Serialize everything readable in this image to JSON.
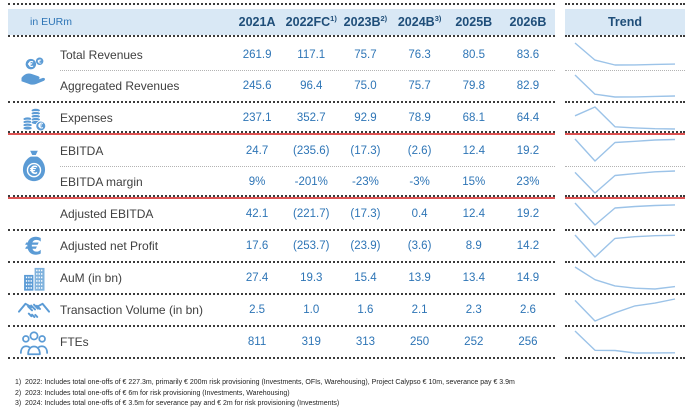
{
  "header": {
    "unit_label": "in EURm",
    "trend_label": "Trend"
  },
  "colors": {
    "header_bg": "#d9e8f5",
    "header_text": "#1f4e79",
    "value_text": "#2e75b6",
    "label_text": "#404040",
    "icon_blue": "#5b9bd5",
    "sparkline": "#9cc3e8",
    "divider_red": "#dd5353"
  },
  "chart_data": {
    "type": "table",
    "title": "Financial plan overview with trend sparklines",
    "unit": "in EURm",
    "columns": [
      "2021A",
      "2022FC",
      "2023B",
      "2024B",
      "2025B",
      "2026B"
    ],
    "column_footnote_refs": [
      "",
      "1)",
      "2)",
      "3)",
      "",
      ""
    ],
    "trend_type": "line",
    "rows": [
      {
        "label": "Total Revenues",
        "icon": "hand-coins-icon",
        "icon_span": 2,
        "sep": "light",
        "display": [
          "261.9",
          "117.1",
          "75.7",
          "76.3",
          "80.5",
          "83.6"
        ],
        "values": [
          261.9,
          117.1,
          75.7,
          76.3,
          80.5,
          83.6
        ]
      },
      {
        "label": "Aggregated Revenues",
        "sep": "dark",
        "display": [
          "245.6",
          "96.4",
          "75.0",
          "75.7",
          "79.8",
          "82.9"
        ],
        "values": [
          245.6,
          96.4,
          75.0,
          75.7,
          79.8,
          82.9
        ]
      },
      {
        "label": "Expenses",
        "icon": "coin-stacks-icon",
        "icon_span": 1,
        "sep": "red",
        "display": [
          "237.1",
          "352.7",
          "92.9",
          "78.9",
          "68.1",
          "64.4"
        ],
        "values": [
          237.1,
          352.7,
          92.9,
          78.9,
          68.1,
          64.4
        ]
      },
      {
        "label": "EBITDA",
        "icon": "money-bag-icon",
        "icon_span": 2,
        "sep": "light",
        "display": [
          "24.7",
          "(235.6)",
          "(17.3)",
          "(2.6)",
          "12.4",
          "19.2"
        ],
        "values": [
          24.7,
          -235.6,
          -17.3,
          -2.6,
          12.4,
          19.2
        ]
      },
      {
        "label": "EBITDA margin",
        "sep": "red",
        "display": [
          "9%",
          "-201%",
          "-23%",
          "-3%",
          "15%",
          "23%"
        ],
        "values": [
          9,
          -201,
          -23,
          -3,
          15,
          23
        ]
      },
      {
        "label": "Adjusted EBITDA",
        "sep": "dark",
        "display": [
          "42.1",
          "(221.7)",
          "(17.3)",
          "0.4",
          "12.4",
          "19.2"
        ],
        "values": [
          42.1,
          -221.7,
          -17.3,
          0.4,
          12.4,
          19.2
        ]
      },
      {
        "label": "Adjusted net Profit",
        "icon": "euro-icon",
        "icon_span": 1,
        "sep": "dark",
        "display": [
          "17.6",
          "(253.7)",
          "(23.9)",
          "(3.6)",
          "8.9",
          "14.2"
        ],
        "values": [
          17.6,
          -253.7,
          -23.9,
          -3.6,
          8.9,
          14.2
        ]
      },
      {
        "label": "AuM (in bn)",
        "icon": "buildings-icon",
        "icon_span": 1,
        "sep": "dark",
        "display": [
          "27.4",
          "19.3",
          "15.4",
          "13.9",
          "13.4",
          "14.9"
        ],
        "values": [
          27.4,
          19.3,
          15.4,
          13.9,
          13.4,
          14.9
        ]
      },
      {
        "label": "Transaction Volume (in bn)",
        "icon": "handshake-icon",
        "icon_span": 1,
        "sep": "dark",
        "display": [
          "2.5",
          "1.0",
          "1.6",
          "2.1",
          "2.3",
          "2.6"
        ],
        "values": [
          2.5,
          1.0,
          1.6,
          2.1,
          2.3,
          2.6
        ]
      },
      {
        "label": "FTEs",
        "icon": "people-group-icon",
        "icon_span": 1,
        "sep": "dark",
        "display": [
          "811",
          "319",
          "313",
          "250",
          "252",
          "256"
        ],
        "values": [
          811,
          319,
          313,
          250,
          252,
          256
        ]
      }
    ]
  },
  "footnotes": [
    {
      "num": "1)",
      "text": "2022: Includes total one-offs of € 227.3m, primarily € 200m risk provisioning (Investments, OFIs, Warehousing), Project Calypso € 10m, severance pay € 3.9m"
    },
    {
      "num": "2)",
      "text": "2023: Includes total one-offs of € 6m for risk provisioning (Investments, Warehousing)"
    },
    {
      "num": "3)",
      "text": "2024: Includes total one-offs of € 3.5m for severance pay and € 2m for risk provisioning (Investments)"
    }
  ]
}
